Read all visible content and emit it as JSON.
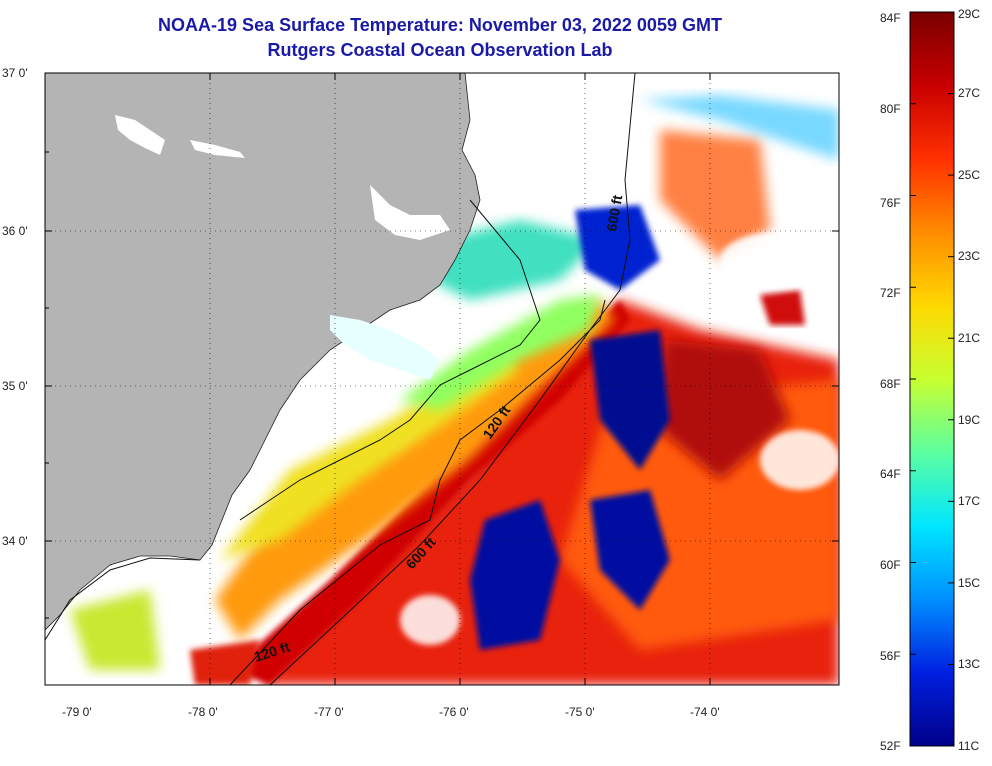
{
  "header": {
    "title": "NOAA-19 Sea Surface Temperature:  November 03, 2022 0059 GMT",
    "subtitle": "Rutgers Coastal Ocean Observation Lab"
  },
  "map": {
    "lat_labels": [
      "37 0'",
      "36 0'",
      "35 0'",
      "34 0'"
    ],
    "lon_labels": [
      "-79 0'",
      "-78 0'",
      "-77 0'",
      "-76 0'",
      "-75 0'",
      "-74 0'"
    ],
    "contours": [
      {
        "label": "600 ft"
      },
      {
        "label": "120 ft"
      },
      {
        "label": "600 ft"
      },
      {
        "label": "120 ft"
      }
    ],
    "land_color": "#b4b4b4",
    "cloud_color": "#ffffff"
  },
  "colorbar": {
    "fahrenheit_labels": [
      "84F",
      "80F",
      "76F",
      "72F",
      "68F",
      "64F",
      "60F",
      "56F",
      "52F"
    ],
    "celsius_labels": [
      "29C",
      "27C",
      "25C",
      "23C",
      "21C",
      "19C",
      "17C",
      "15C",
      "13C",
      "11C"
    ],
    "colors": [
      "#7a0000",
      "#c80000",
      "#ff3000",
      "#ff8c00",
      "#ffd800",
      "#c8ff30",
      "#5cffa0",
      "#00e6ff",
      "#0090ff",
      "#0020e0",
      "#00008a"
    ]
  }
}
